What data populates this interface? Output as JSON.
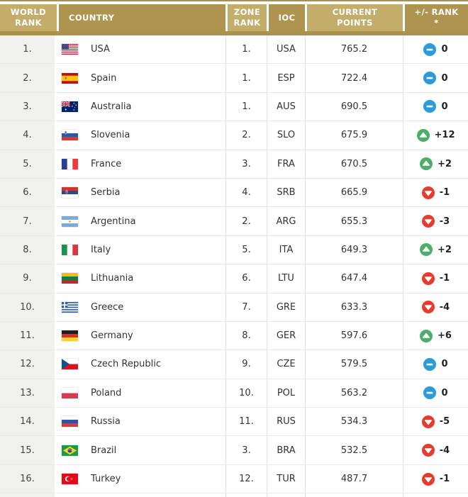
{
  "table": {
    "columns": [
      {
        "id": "world_rank",
        "label": "WORLD\nRANK"
      },
      {
        "id": "country",
        "label": "COUNTRY"
      },
      {
        "id": "zone_rank",
        "label": "ZONE\nRANK"
      },
      {
        "id": "ioc",
        "label": "IOC"
      },
      {
        "id": "current_points",
        "label": "CURRENT\nPOINTS"
      },
      {
        "id": "rank_change",
        "label": "+/- RANK\n*"
      }
    ],
    "rows": [
      {
        "world_rank": "1.",
        "country": "USA",
        "flag": "usa",
        "zone_rank": "1.",
        "ioc": "USA",
        "current_points": "765.2",
        "rank_change": "0",
        "direction": "same"
      },
      {
        "world_rank": "2.",
        "country": "Spain",
        "flag": "esp",
        "zone_rank": "1.",
        "ioc": "ESP",
        "current_points": "722.4",
        "rank_change": "0",
        "direction": "same"
      },
      {
        "world_rank": "3.",
        "country": "Australia",
        "flag": "aus",
        "zone_rank": "1.",
        "ioc": "AUS",
        "current_points": "690.5",
        "rank_change": "0",
        "direction": "same"
      },
      {
        "world_rank": "4.",
        "country": "Slovenia",
        "flag": "slo",
        "zone_rank": "2.",
        "ioc": "SLO",
        "current_points": "675.9",
        "rank_change": "+12",
        "direction": "up"
      },
      {
        "world_rank": "5.",
        "country": "France",
        "flag": "fra",
        "zone_rank": "3.",
        "ioc": "FRA",
        "current_points": "670.5",
        "rank_change": "+2",
        "direction": "up"
      },
      {
        "world_rank": "6.",
        "country": "Serbia",
        "flag": "srb",
        "zone_rank": "4.",
        "ioc": "SRB",
        "current_points": "665.9",
        "rank_change": "-1",
        "direction": "down"
      },
      {
        "world_rank": "7.",
        "country": "Argentina",
        "flag": "arg",
        "zone_rank": "2.",
        "ioc": "ARG",
        "current_points": "655.3",
        "rank_change": "-3",
        "direction": "down"
      },
      {
        "world_rank": "8.",
        "country": "Italy",
        "flag": "ita",
        "zone_rank": "5.",
        "ioc": "ITA",
        "current_points": "649.3",
        "rank_change": "+2",
        "direction": "up"
      },
      {
        "world_rank": "9.",
        "country": "Lithuania",
        "flag": "ltu",
        "zone_rank": "6.",
        "ioc": "LTU",
        "current_points": "647.4",
        "rank_change": "-1",
        "direction": "down"
      },
      {
        "world_rank": "10.",
        "country": "Greece",
        "flag": "gre",
        "zone_rank": "7.",
        "ioc": "GRE",
        "current_points": "633.3",
        "rank_change": "-4",
        "direction": "down"
      },
      {
        "world_rank": "11.",
        "country": "Germany",
        "flag": "ger",
        "zone_rank": "8.",
        "ioc": "GER",
        "current_points": "597.6",
        "rank_change": "+6",
        "direction": "up"
      },
      {
        "world_rank": "12.",
        "country": "Czech Republic",
        "flag": "cze",
        "zone_rank": "9.",
        "ioc": "CZE",
        "current_points": "579.5",
        "rank_change": "0",
        "direction": "same"
      },
      {
        "world_rank": "13.",
        "country": "Poland",
        "flag": "pol",
        "zone_rank": "10.",
        "ioc": "POL",
        "current_points": "563.2",
        "rank_change": "0",
        "direction": "same"
      },
      {
        "world_rank": "14.",
        "country": "Russia",
        "flag": "rus",
        "zone_rank": "11.",
        "ioc": "RUS",
        "current_points": "534.3",
        "rank_change": "-5",
        "direction": "down"
      },
      {
        "world_rank": "15.",
        "country": "Brazil",
        "flag": "bra",
        "zone_rank": "3.",
        "ioc": "BRA",
        "current_points": "532.5",
        "rank_change": "-4",
        "direction": "down"
      },
      {
        "world_rank": "16.",
        "country": "Turkey",
        "flag": "tur",
        "zone_rank": "12.",
        "ioc": "TUR",
        "current_points": "487.7",
        "rank_change": "-1",
        "direction": "down"
      }
    ],
    "colors": {
      "header_gold_light": "#c2ad6b",
      "header_gold_dark": "#ae944e",
      "header_bar_gold": "#ab9149",
      "header_text": "#ffffff",
      "world_rank_column_gray": "#f0f0ee",
      "row_text": "#333333",
      "rank_up_green": "#4cae68",
      "rank_down_red": "#e73b2e",
      "rank_same_blue": "#2b9cd8"
    }
  }
}
